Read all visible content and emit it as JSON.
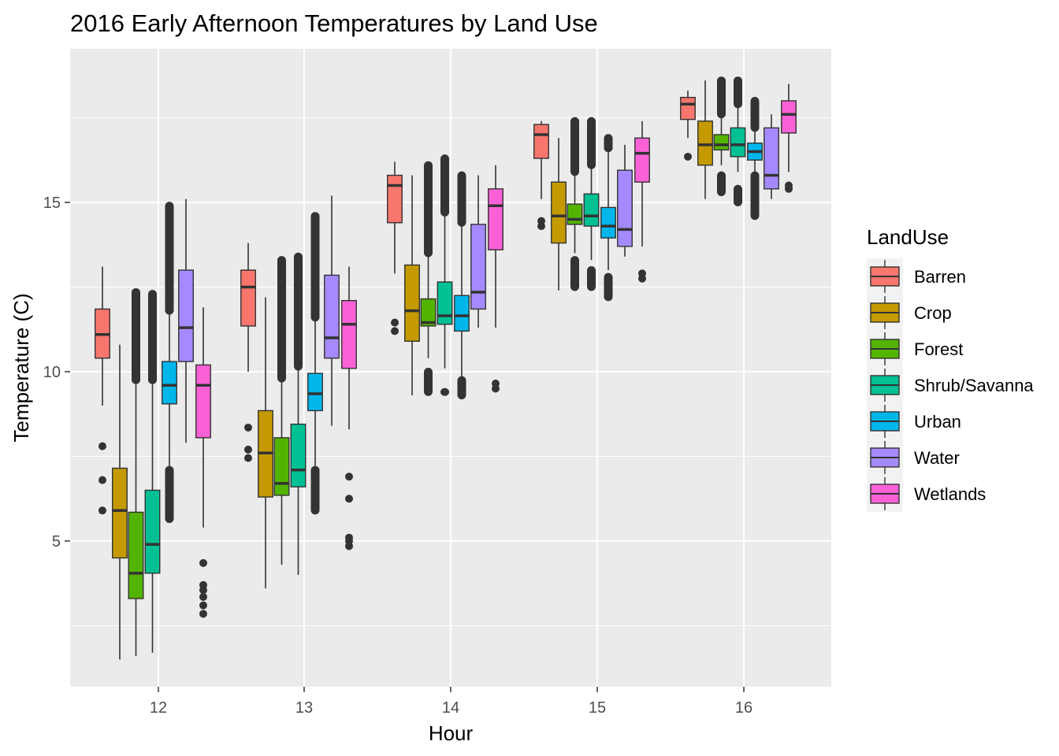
{
  "chart_data": {
    "type": "boxplot",
    "title": "2016 Early Afternoon Temperatures by Land Use",
    "xlabel": "Hour",
    "ylabel": "Temperature (C)",
    "categories": [
      "12",
      "13",
      "14",
      "15",
      "16"
    ],
    "y_ticks": [
      "5",
      "10",
      "15"
    ],
    "ylim": [
      0.7,
      19.5
    ],
    "grid": true,
    "legend": {
      "title": "LandUse",
      "placement": "right"
    },
    "series": [
      {
        "name": "Barren",
        "color": "#F8766D",
        "boxes": [
          {
            "x": "12",
            "whisker_low": 9.0,
            "q1": 10.4,
            "median": 11.1,
            "q3": 11.85,
            "whisker_high": 13.1,
            "outliers": [
              7.8,
              6.8,
              5.9
            ]
          },
          {
            "x": "13",
            "whisker_low": 10.0,
            "q1": 11.35,
            "median": 12.5,
            "q3": 13.0,
            "whisker_high": 13.8,
            "outliers": [
              8.35,
              7.7,
              7.45
            ]
          },
          {
            "x": "14",
            "whisker_low": 12.9,
            "q1": 14.4,
            "median": 15.5,
            "q3": 15.8,
            "whisker_high": 16.2,
            "outliers": [
              11.45,
              11.2
            ]
          },
          {
            "x": "15",
            "whisker_low": 15.1,
            "q1": 16.3,
            "median": 17.0,
            "q3": 17.3,
            "whisker_high": 17.4,
            "outliers": [
              14.45,
              14.3
            ]
          },
          {
            "x": "16",
            "whisker_low": 16.9,
            "q1": 17.45,
            "median": 17.9,
            "q3": 18.1,
            "whisker_high": 18.3,
            "outliers": [
              16.35
            ]
          }
        ]
      },
      {
        "name": "Crop",
        "color": "#C49A00",
        "boxes": [
          {
            "x": "12",
            "whisker_low": 1.5,
            "q1": 4.5,
            "median": 5.9,
            "q3": 7.15,
            "whisker_high": 10.8,
            "outliers": []
          },
          {
            "x": "13",
            "whisker_low": 3.6,
            "q1": 6.3,
            "median": 7.6,
            "q3": 8.85,
            "whisker_high": 12.2,
            "outliers": []
          },
          {
            "x": "14",
            "whisker_low": 9.3,
            "q1": 10.9,
            "median": 11.8,
            "q3": 13.15,
            "whisker_high": 15.8,
            "outliers": []
          },
          {
            "x": "15",
            "whisker_low": 12.4,
            "q1": 13.8,
            "median": 14.6,
            "q3": 15.6,
            "whisker_high": 16.9,
            "outliers": []
          },
          {
            "x": "16",
            "whisker_low": 15.1,
            "q1": 16.1,
            "median": 16.7,
            "q3": 17.4,
            "whisker_high": 18.6,
            "outliers": []
          }
        ]
      },
      {
        "name": "Forest",
        "color": "#53B400",
        "boxes": [
          {
            "x": "12",
            "whisker_low": 1.6,
            "q1": 3.3,
            "median": 4.05,
            "q3": 5.85,
            "whisker_high": 9.7,
            "outliers": [
              9.75,
              12.35
            ],
            "outlier_range": [
              9.75,
              12.35
            ]
          },
          {
            "x": "13",
            "whisker_low": 4.3,
            "q1": 6.35,
            "median": 6.7,
            "q3": 8.05,
            "whisker_high": 10.0,
            "outliers": [
              9.8,
              13.3
            ],
            "outlier_range": [
              9.8,
              13.3
            ]
          },
          {
            "x": "14",
            "whisker_low": 10.4,
            "q1": 11.35,
            "median": 11.45,
            "q3": 12.15,
            "whisker_high": 13.4,
            "outliers": [
              9.4,
              10.0,
              13.5,
              16.1
            ],
            "outlier_ranges": [
              [
                9.4,
                10.0
              ],
              [
                13.5,
                16.1
              ]
            ]
          },
          {
            "x": "15",
            "whisker_low": 13.5,
            "q1": 14.35,
            "median": 14.5,
            "q3": 14.95,
            "whisker_high": 15.8,
            "outliers": [
              12.5,
              13.3,
              15.9,
              17.4
            ],
            "outlier_ranges": [
              [
                12.5,
                13.3
              ],
              [
                15.9,
                17.4
              ]
            ]
          },
          {
            "x": "16",
            "whisker_low": 16.1,
            "q1": 16.55,
            "median": 16.7,
            "q3": 17.0,
            "whisker_high": 17.5,
            "outliers": [
              15.3,
              15.8,
              17.6,
              18.6
            ],
            "outlier_ranges": [
              [
                15.3,
                15.8
              ],
              [
                17.6,
                18.6
              ]
            ]
          }
        ]
      },
      {
        "name": "Shrub/Savanna",
        "color": "#00C094",
        "boxes": [
          {
            "x": "12",
            "whisker_low": 1.7,
            "q1": 4.05,
            "median": 4.9,
            "q3": 6.5,
            "whisker_high": 9.7,
            "outliers": [
              9.75,
              12.3
            ],
            "outlier_range": [
              9.75,
              12.3
            ]
          },
          {
            "x": "13",
            "whisker_low": 4.0,
            "q1": 6.6,
            "median": 7.1,
            "q3": 8.45,
            "whisker_high": 10.1,
            "outliers": [
              10.15,
              13.4
            ],
            "outlier_range": [
              10.15,
              13.4
            ]
          },
          {
            "x": "14",
            "whisker_low": 10.1,
            "q1": 11.4,
            "median": 11.65,
            "q3": 12.65,
            "whisker_high": 14.6,
            "outliers": [
              9.4,
              14.7,
              16.3
            ],
            "outlier_ranges": [
              [
                9.4,
                9.4
              ],
              [
                14.7,
                16.3
              ]
            ]
          },
          {
            "x": "15",
            "whisker_low": 13.3,
            "q1": 14.3,
            "median": 14.6,
            "q3": 15.25,
            "whisker_high": 16.0,
            "outliers": [
              12.5,
              13.0,
              16.1,
              17.4
            ],
            "outlier_ranges": [
              [
                12.5,
                13.0
              ],
              [
                16.1,
                17.4
              ]
            ]
          },
          {
            "x": "16",
            "whisker_low": 15.9,
            "q1": 16.35,
            "median": 16.7,
            "q3": 17.2,
            "whisker_high": 17.9,
            "outliers": [
              15.0,
              15.4,
              17.9,
              18.6
            ],
            "outlier_ranges": [
              [
                15.0,
                15.4
              ],
              [
                17.9,
                18.6
              ]
            ]
          }
        ]
      },
      {
        "name": "Urban",
        "color": "#00B6EB",
        "boxes": [
          {
            "x": "12",
            "whisker_low": 7.1,
            "q1": 9.05,
            "median": 9.6,
            "q3": 10.3,
            "whisker_high": 11.7,
            "outliers": [
              5.65,
              7.1,
              11.8,
              14.9
            ],
            "outlier_ranges": [
              [
                5.65,
                7.1
              ],
              [
                11.8,
                14.9
              ]
            ]
          },
          {
            "x": "13",
            "whisker_low": 7.1,
            "q1": 8.85,
            "median": 9.35,
            "q3": 9.95,
            "whisker_high": 11.5,
            "outliers": [
              5.9,
              7.1,
              11.6,
              14.6
            ],
            "outlier_ranges": [
              [
                5.9,
                7.1
              ],
              [
                11.6,
                14.6
              ]
            ]
          },
          {
            "x": "14",
            "whisker_low": 9.8,
            "q1": 11.2,
            "median": 11.65,
            "q3": 12.25,
            "whisker_high": 14.3,
            "outliers": [
              9.3,
              9.75,
              14.4,
              15.8
            ],
            "outlier_ranges": [
              [
                9.3,
                9.75
              ],
              [
                14.4,
                15.8
              ]
            ]
          },
          {
            "x": "15",
            "whisker_low": 13.0,
            "q1": 13.95,
            "median": 14.3,
            "q3": 14.85,
            "whisker_high": 16.5,
            "outliers": [
              12.2,
              12.8,
              16.6,
              16.9
            ],
            "outlier_ranges": [
              [
                12.2,
                12.8
              ],
              [
                16.6,
                16.9
              ]
            ]
          },
          {
            "x": "16",
            "whisker_low": 15.8,
            "q1": 16.25,
            "median": 16.5,
            "q3": 16.75,
            "whisker_high": 17.1,
            "outliers": [
              14.6,
              15.8,
              17.2,
              18.0
            ],
            "outlier_ranges": [
              [
                14.6,
                15.8
              ],
              [
                17.2,
                18.0
              ]
            ]
          }
        ]
      },
      {
        "name": "Water",
        "color": "#A58AFF",
        "boxes": [
          {
            "x": "12",
            "whisker_low": 7.9,
            "q1": 10.3,
            "median": 11.3,
            "q3": 13.0,
            "whisker_high": 15.1,
            "outliers": []
          },
          {
            "x": "13",
            "whisker_low": 8.4,
            "q1": 10.4,
            "median": 11.0,
            "q3": 12.85,
            "whisker_high": 15.2,
            "outliers": []
          },
          {
            "x": "14",
            "whisker_low": 11.3,
            "q1": 11.85,
            "median": 12.35,
            "q3": 14.35,
            "whisker_high": 15.8,
            "outliers": []
          },
          {
            "x": "15",
            "whisker_low": 13.4,
            "q1": 13.7,
            "median": 14.2,
            "q3": 15.95,
            "whisker_high": 16.7,
            "outliers": []
          },
          {
            "x": "16",
            "whisker_low": 15.1,
            "q1": 15.4,
            "median": 15.8,
            "q3": 17.2,
            "whisker_high": 17.6,
            "outliers": []
          }
        ]
      },
      {
        "name": "Wetlands",
        "color": "#FB61D7",
        "boxes": [
          {
            "x": "12",
            "whisker_low": 5.4,
            "q1": 8.05,
            "median": 9.6,
            "q3": 10.2,
            "whisker_high": 11.9,
            "outliers": [
              4.35,
              3.7,
              3.55,
              3.35,
              3.1,
              2.85
            ]
          },
          {
            "x": "13",
            "whisker_low": 8.3,
            "q1": 10.1,
            "median": 11.4,
            "q3": 12.1,
            "whisker_high": 13.1,
            "outliers": [
              6.9,
              6.25,
              5.1,
              5.0,
              4.85
            ]
          },
          {
            "x": "14",
            "whisker_low": 11.3,
            "q1": 13.6,
            "median": 14.9,
            "q3": 15.4,
            "whisker_high": 16.1,
            "outliers": [
              9.65,
              9.5
            ]
          },
          {
            "x": "15",
            "whisker_low": 13.7,
            "q1": 15.6,
            "median": 16.45,
            "q3": 16.9,
            "whisker_high": 17.4,
            "outliers": [
              12.9,
              12.75
            ]
          },
          {
            "x": "16",
            "whisker_low": 15.9,
            "q1": 17.05,
            "median": 17.6,
            "q3": 18.0,
            "whisker_high": 18.5,
            "outliers": [
              15.5,
              15.4
            ]
          }
        ]
      }
    ]
  }
}
